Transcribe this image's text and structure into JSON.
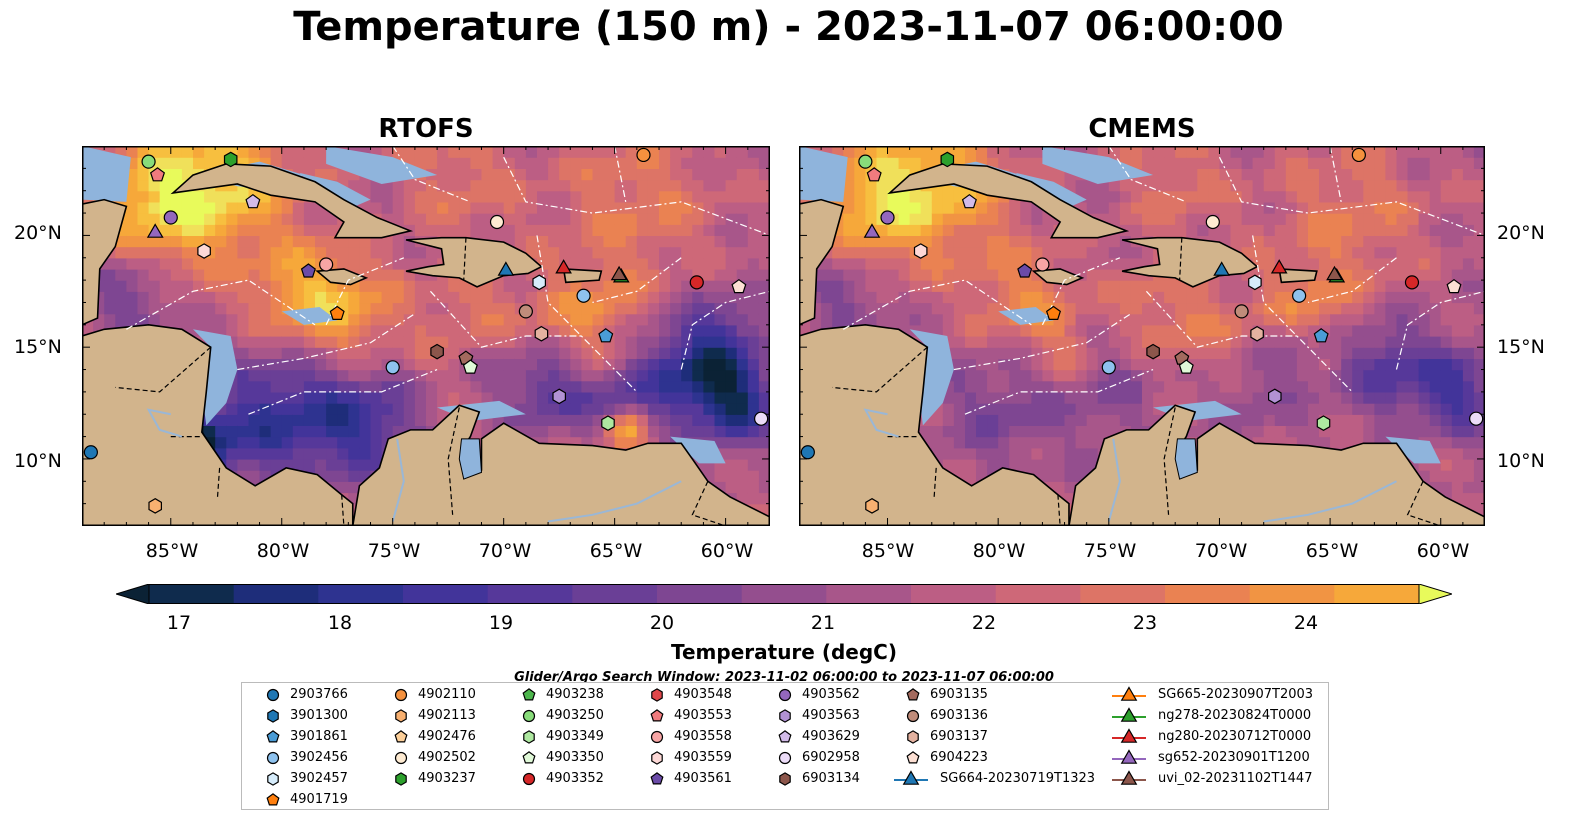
{
  "title": "Temperature (150 m) - 2023-11-07 06:00:00",
  "panels": [
    {
      "title": "RTOFS"
    },
    {
      "title": "CMEMS"
    }
  ],
  "axes": {
    "lat_ticks": [
      "20°N",
      "15°N",
      "10°N"
    ],
    "lon_ticks": [
      "85°W",
      "80°W",
      "75°W",
      "70°W",
      "65°W",
      "60°W"
    ],
    "lon_range": [
      -89,
      -58
    ],
    "lat_range": [
      7,
      24
    ]
  },
  "colorbar": {
    "label": "Temperature (degC)",
    "ticks": [
      "17",
      "18",
      "19",
      "20",
      "21",
      "22",
      "23",
      "24"
    ],
    "min": 17,
    "max": 24.5,
    "step": 0.5,
    "extend": "both",
    "colors": [
      "#0b2235",
      "#0f2b4d",
      "#1e2d7a",
      "#2e3390",
      "#42349a",
      "#56389a",
      "#6a3f96",
      "#7e4692",
      "#944e8e",
      "#a8568a",
      "#bc5e84",
      "#ce6878",
      "#dd7466",
      "#ea8252",
      "#f19443",
      "#f6a83a",
      "#f7bf3f",
      "#f0e05a",
      "#e8fa5b"
    ]
  },
  "search_window": "Glider/Argo Search Window: 2023-11-02 06:00:00 to 2023-11-07 06:00:00",
  "map_colors": {
    "land": "#d2b48c",
    "shelf": "#8fb4dc",
    "deep_dark": "#061f30"
  },
  "legend": [
    {
      "id": "2903766",
      "marker": "circle",
      "color": "#1f77b4"
    },
    {
      "id": "3901300",
      "marker": "hexagon",
      "color": "#1f77b4"
    },
    {
      "id": "3901861",
      "marker": "pentagon",
      "color": "#4a9cd6"
    },
    {
      "id": "3902456",
      "marker": "circle",
      "color": "#8ec2ee"
    },
    {
      "id": "3902457",
      "marker": "hexagon",
      "color": "#d6ecfb"
    },
    {
      "id": "4901719",
      "marker": "pentagon",
      "color": "#ff7f0e"
    },
    {
      "id": "4902110",
      "marker": "circle",
      "color": "#f5913e"
    },
    {
      "id": "4902113",
      "marker": "hexagon",
      "color": "#f8b070"
    },
    {
      "id": "4902476",
      "marker": "pentagon",
      "color": "#fccf99"
    },
    {
      "id": "4902502",
      "marker": "circle",
      "color": "#feebd2"
    },
    {
      "id": "4903237",
      "marker": "hexagon",
      "color": "#2ca02c"
    },
    {
      "id": "4903238",
      "marker": "pentagon",
      "color": "#4cb64c"
    },
    {
      "id": "4903250",
      "marker": "circle",
      "color": "#88dc7a"
    },
    {
      "id": "4903349",
      "marker": "hexagon",
      "color": "#aee8a0"
    },
    {
      "id": "4903350",
      "marker": "pentagon",
      "color": "#e0f9d8"
    },
    {
      "id": "4903352",
      "marker": "circle",
      "color": "#d62728"
    },
    {
      "id": "4903548",
      "marker": "hexagon",
      "color": "#e0474a"
    },
    {
      "id": "4903553",
      "marker": "pentagon",
      "color": "#f07b7e"
    },
    {
      "id": "4903558",
      "marker": "circle",
      "color": "#f7a5a5"
    },
    {
      "id": "4903559",
      "marker": "hexagon",
      "color": "#fdd8d6"
    },
    {
      "id": "4903561",
      "marker": "pentagon",
      "color": "#6b4ba8"
    },
    {
      "id": "4903562",
      "marker": "circle",
      "color": "#9467bd"
    },
    {
      "id": "4903563",
      "marker": "hexagon",
      "color": "#b292d4"
    },
    {
      "id": "4903629",
      "marker": "pentagon",
      "color": "#d2bbe8"
    },
    {
      "id": "6902958",
      "marker": "circle",
      "color": "#ecdcf8"
    },
    {
      "id": "6903134",
      "marker": "hexagon",
      "color": "#8c564b"
    },
    {
      "id": "6903135",
      "marker": "pentagon",
      "color": "#a36a5e"
    },
    {
      "id": "6903136",
      "marker": "circle",
      "color": "#c08c7a"
    },
    {
      "id": "6903137",
      "marker": "hexagon",
      "color": "#e4b2a0"
    },
    {
      "id": "6904223",
      "marker": "pentagon",
      "color": "#fde0d4"
    },
    {
      "id": "SG664-20230719T1323",
      "marker": "triangle-line",
      "color": "#1f77b4"
    },
    {
      "id": "SG665-20230907T2003",
      "marker": "triangle-line",
      "color": "#ff7f0e"
    },
    {
      "id": "ng278-20230824T0000",
      "marker": "triangle-line",
      "color": "#2ca02c"
    },
    {
      "id": "ng280-20230712T0000",
      "marker": "triangle-line",
      "color": "#d62728"
    },
    {
      "id": "sg652-20230901T1200",
      "marker": "triangle-line",
      "color": "#9467bd"
    },
    {
      "id": "uvi_02-20231102T1447",
      "marker": "triangle-line",
      "color": "#8c564b"
    }
  ],
  "map_markers": [
    {
      "id": "2903766",
      "lon": -88.6,
      "lat": 10.3
    },
    {
      "id": "4903250",
      "lon": -86.0,
      "lat": 23.3
    },
    {
      "id": "4903553",
      "lon": -85.6,
      "lat": 22.7
    },
    {
      "id": "4903237",
      "lon": -82.3,
      "lat": 23.4
    },
    {
      "id": "4903562",
      "lon": -85.0,
      "lat": 20.8
    },
    {
      "id": "sg652-20230901T1200",
      "lon": -85.7,
      "lat": 20.2
    },
    {
      "id": "4903629",
      "lon": -81.3,
      "lat": 21.5
    },
    {
      "id": "4903559",
      "lon": -83.5,
      "lat": 19.3
    },
    {
      "id": "4903561",
      "lon": -78.8,
      "lat": 18.4
    },
    {
      "id": "4903558",
      "lon": -78.0,
      "lat": 18.7
    },
    {
      "id": "4901719",
      "lon": -77.5,
      "lat": 16.5
    },
    {
      "id": "3902456",
      "lon": -75.0,
      "lat": 14.1
    },
    {
      "id": "6903134",
      "lon": -73.0,
      "lat": 14.8
    },
    {
      "id": "6903135",
      "lon": -71.7,
      "lat": 14.5
    },
    {
      "id": "4903350",
      "lon": -71.5,
      "lat": 14.1
    },
    {
      "id": "4902110",
      "lon": -63.7,
      "lat": 23.6
    },
    {
      "id": "4902502",
      "lon": -70.3,
      "lat": 20.6
    },
    {
      "id": "SG664-20230719T1323",
      "lon": -69.9,
      "lat": 18.5
    },
    {
      "id": "ng280-20230712T0000",
      "lon": -67.3,
      "lat": 18.6
    },
    {
      "id": "3902457",
      "lon": -68.4,
      "lat": 17.9
    },
    {
      "id": "3902456",
      "lon": -66.4,
      "lat": 17.3
    },
    {
      "id": "6903136",
      "lon": -69.0,
      "lat": 16.6
    },
    {
      "id": "6903137",
      "lon": -68.3,
      "lat": 15.6
    },
    {
      "id": "3901861",
      "lon": -65.4,
      "lat": 15.5
    },
    {
      "id": "ng278-20230824T0000",
      "lon": -64.7,
      "lat": 18.2
    },
    {
      "id": "uvi_02-20231102T1447",
      "lon": -64.8,
      "lat": 18.3
    },
    {
      "id": "4903352",
      "lon": -61.3,
      "lat": 17.9
    },
    {
      "id": "6904223",
      "lon": -59.4,
      "lat": 17.7
    },
    {
      "id": "4903349",
      "lon": -65.3,
      "lat": 11.6
    },
    {
      "id": "4903563",
      "lon": -67.5,
      "lat": 12.8
    },
    {
      "id": "6902958",
      "lon": -58.4,
      "lat": 11.8
    },
    {
      "id": "4902113",
      "lon": -85.7,
      "lat": 7.9
    }
  ]
}
